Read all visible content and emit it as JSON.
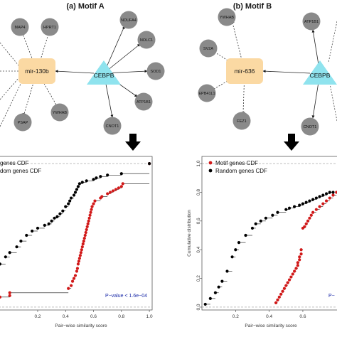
{
  "panels": [
    {
      "title": "(a) Motif A",
      "mirna": "mir-130b",
      "tf": "CEBPB",
      "mirna_targets": [
        "MAP4",
        "HPRT1",
        "YWHAB",
        "PSAP"
      ],
      "tf_targets": [
        "NDUFA4",
        "NOLC1",
        "SOD1",
        "ATP1B1",
        "CNOT1"
      ]
    },
    {
      "title": "(b) Motif B",
      "mirna": "mir-636",
      "tf": "CEBPB",
      "mirna_targets": [
        "YWHAB",
        "SV2A",
        "EPB41L1",
        "FEZ1"
      ],
      "tf_targets": [
        "ATP1B1",
        "CNOT1"
      ]
    }
  ],
  "colors": {
    "mirna_box": "#fbd9a3",
    "tf_triangle": "#8fe3ee",
    "gene_node": "#8a8a8a",
    "motif_points": "#d11919",
    "random_points": "#000000",
    "pvalue_text": "#1a2aa8"
  },
  "chart_data": [
    {
      "type": "scatter",
      "cdf": true,
      "xlabel": "Pair−wise similarity score",
      "ylabel": "",
      "xlim": [
        -0.08,
        1.02
      ],
      "ylim": [
        -0.02,
        1.05
      ],
      "xticks": [
        "0.2",
        "0.4",
        "0.6",
        "0.8",
        "1.0"
      ],
      "yticks": [],
      "legend": [
        "genes CDF",
        "dom genes CDF"
      ],
      "legend_position": "top-left",
      "annotation": "P−value < 1.6e−04",
      "series": [
        {
          "name": "genes CDF",
          "color": "#d11919",
          "x": [
            -0.07,
            0.0,
            0.0,
            0.42,
            0.44,
            0.45,
            0.46,
            0.47,
            0.48,
            0.485,
            0.49,
            0.495,
            0.5,
            0.505,
            0.51,
            0.515,
            0.52,
            0.525,
            0.53,
            0.535,
            0.54,
            0.545,
            0.55,
            0.555,
            0.56,
            0.565,
            0.57,
            0.575,
            0.58,
            0.585,
            0.59,
            0.6,
            0.61,
            0.65,
            0.66,
            0.7,
            0.72,
            0.74,
            0.76,
            0.78,
            0.8,
            0.81,
            1.0
          ],
          "y": [
            0.07,
            0.08,
            0.1,
            0.13,
            0.15,
            0.18,
            0.2,
            0.22,
            0.25,
            0.27,
            0.3,
            0.32,
            0.34,
            0.36,
            0.38,
            0.4,
            0.42,
            0.44,
            0.46,
            0.48,
            0.5,
            0.52,
            0.54,
            0.56,
            0.58,
            0.6,
            0.62,
            0.64,
            0.66,
            0.68,
            0.7,
            0.72,
            0.74,
            0.76,
            0.77,
            0.79,
            0.8,
            0.81,
            0.82,
            0.83,
            0.84,
            0.86,
            1.0
          ]
        },
        {
          "name": "dom genes CDF",
          "color": "#000000",
          "x": [
            -0.07,
            -0.03,
            0.0,
            0.05,
            0.08,
            0.12,
            0.16,
            0.2,
            0.25,
            0.28,
            0.3,
            0.32,
            0.34,
            0.36,
            0.38,
            0.4,
            0.42,
            0.43,
            0.44,
            0.46,
            0.47,
            0.48,
            0.49,
            0.5,
            0.52,
            0.55,
            0.6,
            0.62,
            0.65,
            0.7,
            0.8,
            1.0
          ],
          "y": [
            0.3,
            0.35,
            0.38,
            0.42,
            0.46,
            0.5,
            0.53,
            0.55,
            0.57,
            0.58,
            0.6,
            0.62,
            0.63,
            0.65,
            0.67,
            0.7,
            0.72,
            0.74,
            0.76,
            0.78,
            0.8,
            0.82,
            0.84,
            0.86,
            0.87,
            0.88,
            0.89,
            0.9,
            0.91,
            0.92,
            0.93,
            1.0
          ]
        }
      ]
    },
    {
      "type": "scatter",
      "cdf": true,
      "xlabel": "Pair−wise similarity score",
      "ylabel": "Cumulative distribution",
      "xlim": [
        0.0,
        0.82
      ],
      "ylim": [
        -0.02,
        1.05
      ],
      "xticks": [
        "0.2",
        "0.4",
        "0.6"
      ],
      "yticks": [
        "0.0",
        "0.2",
        "0.4",
        "0.6",
        "0.8",
        "1.0"
      ],
      "legend": [
        "Motif genes CDF",
        "Random genes CDF"
      ],
      "legend_position": "top-left",
      "annotation": "P−",
      "series": [
        {
          "name": "Motif genes CDF",
          "color": "#d11919",
          "x": [
            0.44,
            0.45,
            0.46,
            0.47,
            0.48,
            0.49,
            0.5,
            0.51,
            0.52,
            0.53,
            0.54,
            0.55,
            0.56,
            0.57,
            0.57,
            0.58,
            0.58,
            0.59,
            0.59,
            0.6,
            0.61,
            0.62,
            0.63,
            0.64,
            0.65,
            0.66,
            0.68,
            0.7,
            0.72,
            0.74,
            0.76,
            0.78,
            0.8
          ],
          "y": [
            0.03,
            0.05,
            0.07,
            0.09,
            0.11,
            0.13,
            0.15,
            0.17,
            0.19,
            0.21,
            0.23,
            0.25,
            0.27,
            0.29,
            0.31,
            0.33,
            0.35,
            0.37,
            0.4,
            0.55,
            0.56,
            0.58,
            0.6,
            0.62,
            0.64,
            0.66,
            0.68,
            0.7,
            0.72,
            0.74,
            0.76,
            0.78,
            0.8
          ]
        },
        {
          "name": "Random genes CDF",
          "color": "#000000",
          "x": [
            0.02,
            0.05,
            0.08,
            0.1,
            0.12,
            0.15,
            0.18,
            0.2,
            0.22,
            0.26,
            0.3,
            0.32,
            0.35,
            0.38,
            0.42,
            0.45,
            0.5,
            0.52,
            0.55,
            0.58,
            0.6,
            0.62,
            0.64,
            0.66,
            0.68,
            0.7,
            0.72,
            0.74,
            0.76,
            0.78
          ],
          "y": [
            0.02,
            0.06,
            0.1,
            0.14,
            0.18,
            0.25,
            0.35,
            0.4,
            0.45,
            0.5,
            0.55,
            0.58,
            0.6,
            0.62,
            0.64,
            0.66,
            0.68,
            0.69,
            0.7,
            0.71,
            0.72,
            0.73,
            0.74,
            0.75,
            0.76,
            0.77,
            0.78,
            0.79,
            0.8,
            0.8
          ]
        }
      ]
    }
  ]
}
